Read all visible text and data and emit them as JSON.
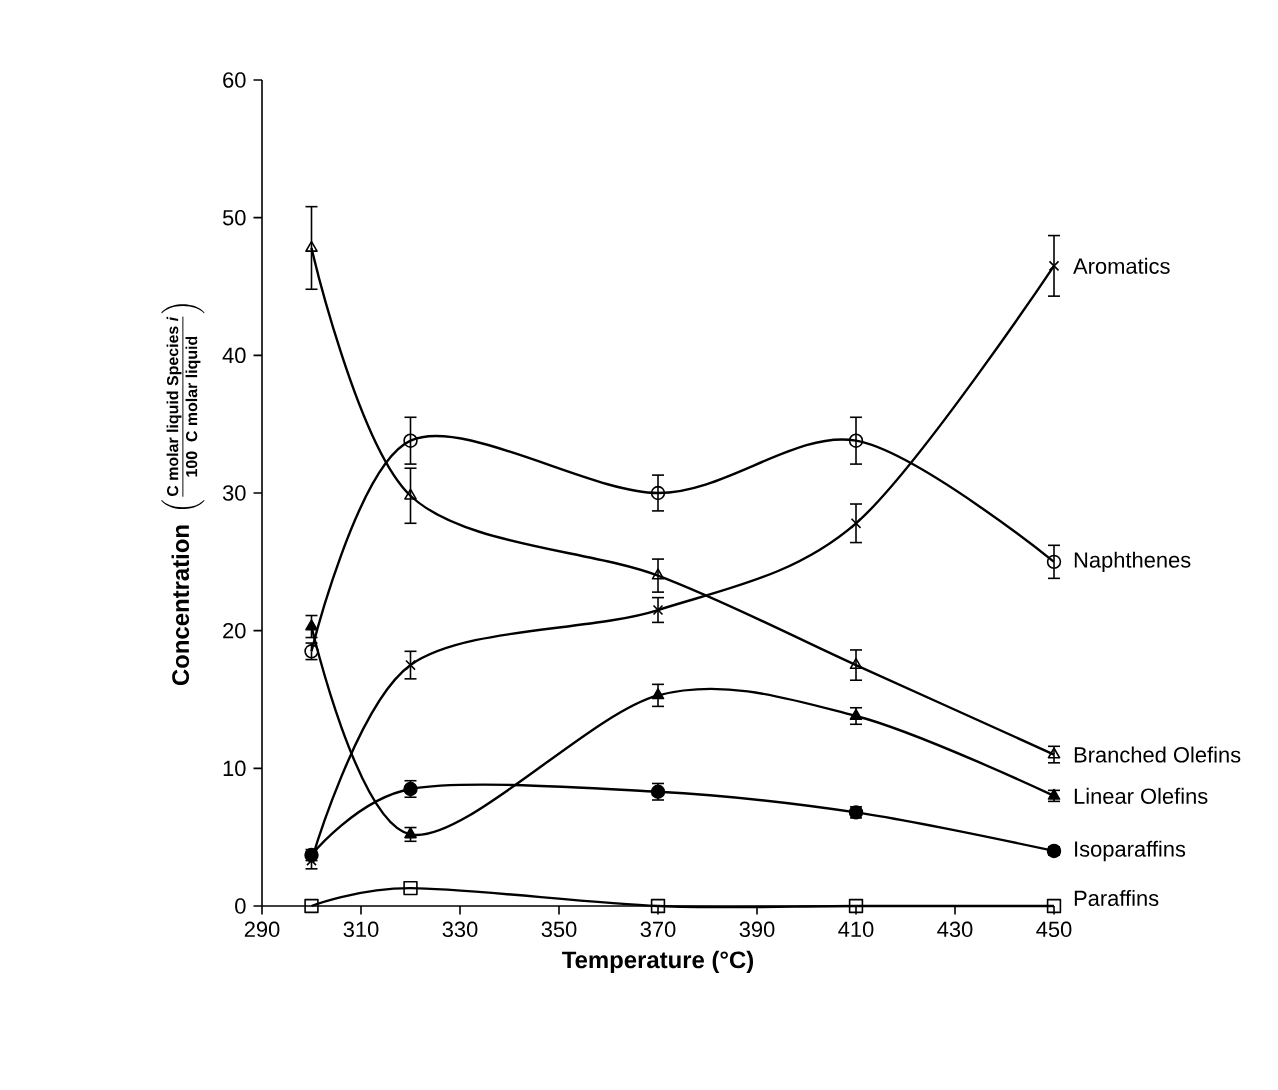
{
  "chart_data": {
    "type": "line",
    "xlabel": "Temperature (°C)",
    "ylabel": "\\textbf{Concentration}\\;\\left(\\frac{\\textbf{C molar liquid Species \\textit{i}}}{\\textbf{100\\ \\ C molar liquid}}\\right)",
    "x": [
      300,
      320,
      370,
      410,
      450
    ],
    "xlim": [
      290,
      450
    ],
    "xticks": [
      290,
      310,
      330,
      350,
      370,
      390,
      410,
      430,
      450
    ],
    "ylim": [
      0,
      60
    ],
    "yticks": [
      0,
      10,
      20,
      30,
      40,
      50,
      60
    ],
    "grid": false,
    "legend": false,
    "series": [
      {
        "name": "Aromatics",
        "color": "#000000",
        "marker": "cross",
        "values": [
          3.3,
          17.5,
          21.5,
          27.8,
          46.5
        ],
        "errors": [
          0.6,
          1.0,
          0.9,
          1.4,
          2.2
        ]
      },
      {
        "name": "Naphthenes",
        "color": "#000000",
        "marker": "circle",
        "values": [
          18.5,
          33.8,
          30.0,
          33.8,
          25.0
        ],
        "errors": [
          0.6,
          1.7,
          1.3,
          1.7,
          1.2
        ]
      },
      {
        "name": "Branched Olefins",
        "color": "#000000",
        "marker": "triangle",
        "values": [
          47.8,
          29.8,
          24.0,
          17.5,
          11.0
        ],
        "errors": [
          3.0,
          2.0,
          1.2,
          1.1,
          0.6
        ]
      },
      {
        "name": "Linear Olefins",
        "color": "#000000",
        "marker": "triangle",
        "values": [
          20.3,
          5.2,
          15.3,
          13.8,
          8.0
        ],
        "errors": [
          0.8,
          0.5,
          0.8,
          0.6,
          0.4
        ]
      },
      {
        "name": "Isoparaffins",
        "color": "#000000",
        "marker": "circle",
        "values": [
          3.7,
          8.5,
          8.3,
          6.8,
          4.0
        ],
        "errors": [
          0.4,
          0.6,
          0.6,
          0.4,
          0.3
        ]
      },
      {
        "name": "Paraffins",
        "color": "#000000",
        "marker": "square",
        "values": [
          0,
          1.3,
          0,
          0,
          0
        ]
      }
    ]
  }
}
